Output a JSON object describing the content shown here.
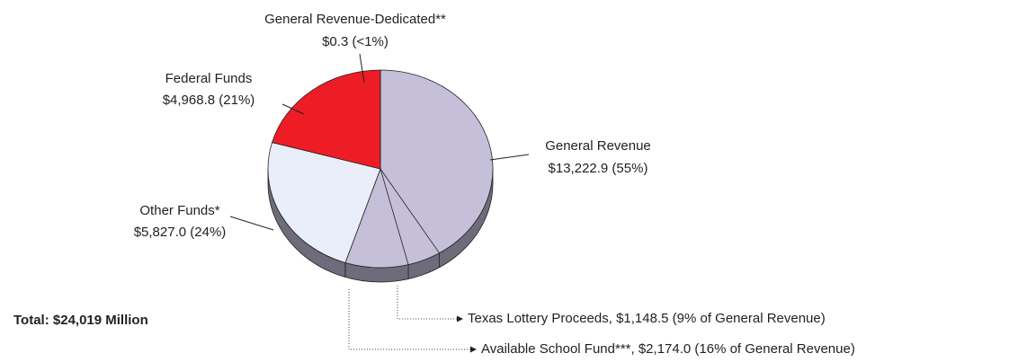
{
  "chart_data": {
    "type": "pie",
    "categories": [
      "General Revenue",
      "Other Funds*",
      "Federal Funds",
      "General Revenue-Dedicated**"
    ],
    "values": [
      13222.9,
      5827.0,
      4968.8,
      0.3
    ],
    "value_labels": [
      "$13,222.9 (55%)",
      "$5,827.0 (24%)",
      "$4,968.8 (21%)",
      "$0.3 (<1%)"
    ],
    "colors": [
      "#c6bfda",
      "#e9eef8",
      "#ee1c25",
      "#c6bfda"
    ],
    "sub_slices": [
      {
        "value": 1148.5,
        "label": "Texas Lottery Proceeds, $1,148.5 (9% of General Revenue)"
      },
      {
        "value": 2174.0,
        "label": "Available School Fund***, $2,174.0 (16% of General Revenue)"
      }
    ],
    "total_label": "Total: $24,019 Million"
  }
}
